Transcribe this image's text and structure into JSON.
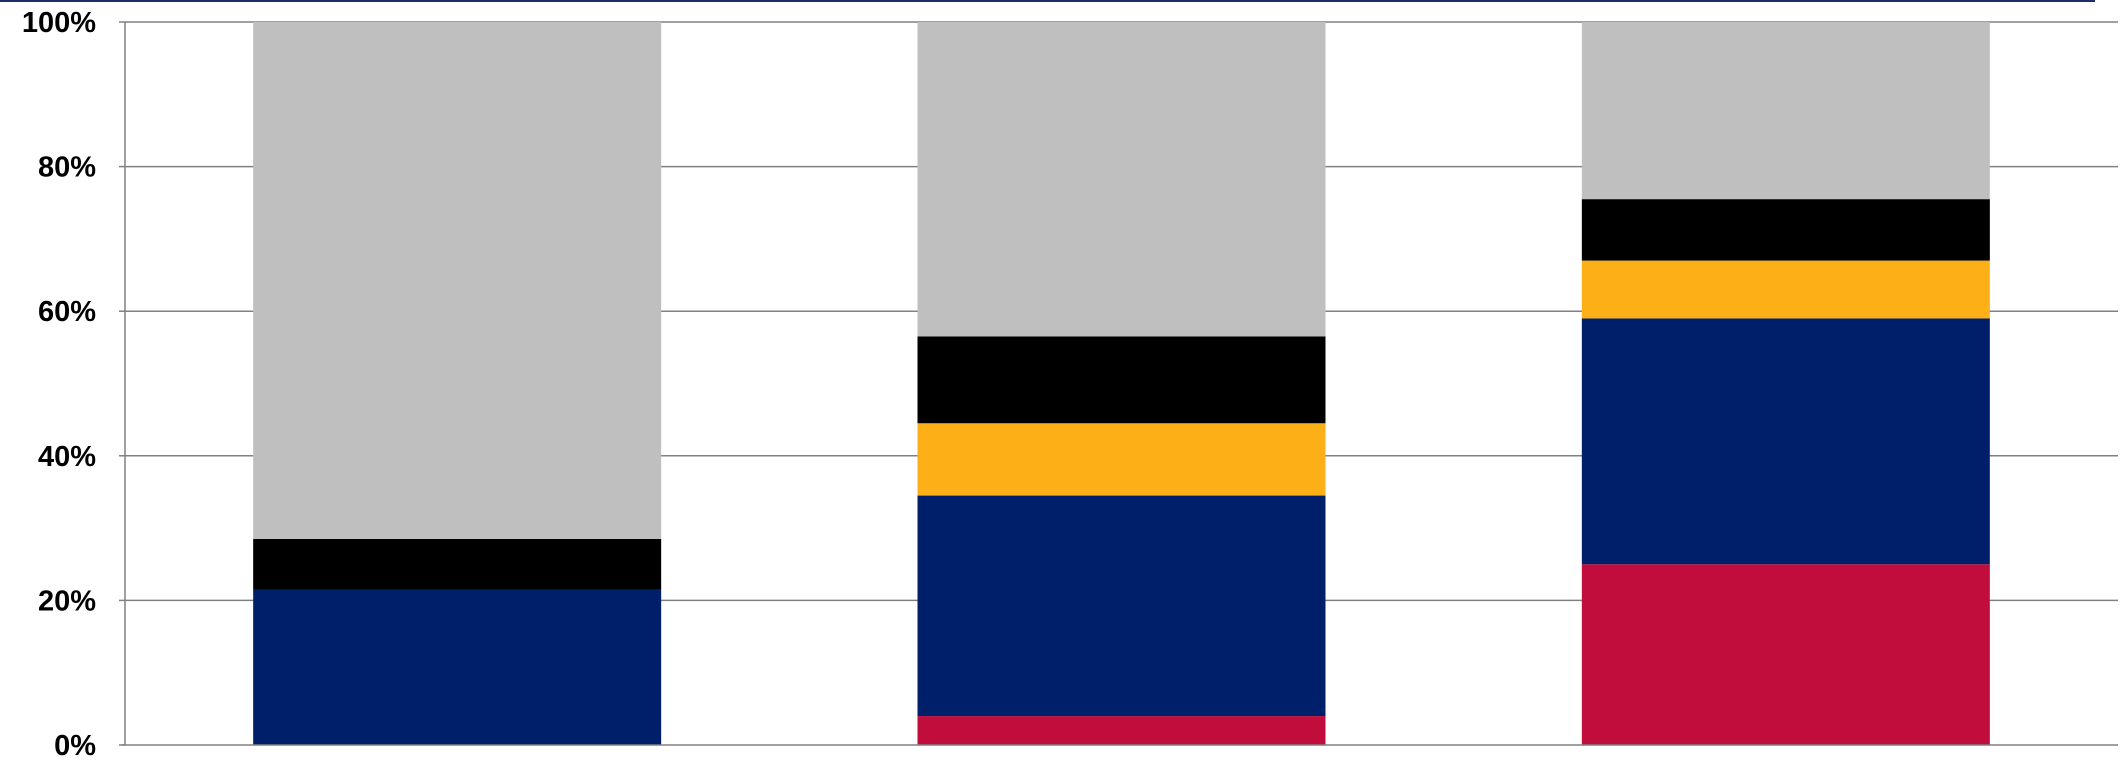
{
  "chart_data": {
    "type": "bar",
    "stacked": true,
    "normalized": true,
    "categories": [
      "",
      "",
      ""
    ],
    "ylim": [
      0,
      100
    ],
    "y_ticks": [
      "0%",
      "20%",
      "40%",
      "60%",
      "80%",
      "100%"
    ],
    "grid": true,
    "legend": "none",
    "segments_bottom_to_top": [
      {
        "color": "#c00d3b",
        "values": [
          0,
          4,
          25
        ]
      },
      {
        "color": "#001f6b",
        "values": [
          21.5,
          30.5,
          34
        ]
      },
      {
        "color": "#fcaf17",
        "values": [
          0,
          10,
          8
        ]
      },
      {
        "color": "#000000",
        "values": [
          7,
          12,
          8.5
        ]
      },
      {
        "color": "#bfbfbf",
        "values": [
          71.5,
          43.5,
          24.5
        ]
      }
    ]
  }
}
